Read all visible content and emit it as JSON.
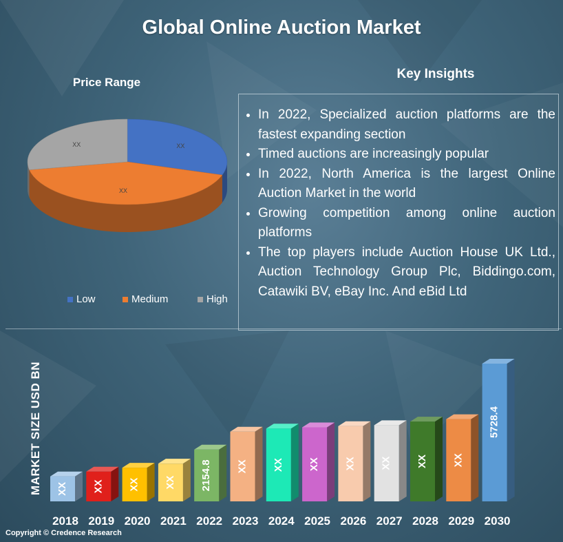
{
  "title": "Global Online Auction Market",
  "pie_chart": {
    "title": "Price Range",
    "legend": [
      "Low",
      "Medium",
      "High"
    ]
  },
  "key_insights": {
    "title": "Key Insights",
    "items": [
      "In 2022, Specialized auction platforms are the fastest expanding section",
      "Timed auctions are increasingly popular",
      "In 2022, North America is the largest Online Auction Market in the world",
      "Growing competition among online auction platforms",
      "The top players include Auction House UK Ltd., Auction Technology Group Plc, Biddingo.com, Catawiki BV, eBay Inc. And eBid Ltd"
    ]
  },
  "chart_data": [
    {
      "type": "pie",
      "title": "Price Range",
      "labels": [
        "Low",
        "Medium",
        "High"
      ],
      "values": [
        30,
        42,
        28
      ],
      "data_labels": [
        "XX",
        "XX",
        "XX"
      ],
      "colors": [
        "#4472c4",
        "#ed7d31",
        "#a5a5a5"
      ],
      "legend_position": "bottom"
    },
    {
      "type": "bar",
      "categories": [
        "2018",
        "2019",
        "2020",
        "2021",
        "2022",
        "2023",
        "2024",
        "2025",
        "2026",
        "2027",
        "2028",
        "2029",
        "2030"
      ],
      "values": [
        1040,
        1240,
        1400,
        1570,
        2154.8,
        2900,
        3030,
        3080,
        3130,
        3170,
        3320,
        3420,
        5728.4
      ],
      "data_labels": [
        "XX",
        "XX",
        "XX",
        "XX",
        "2154.8",
        "XX",
        "XX",
        "XX",
        "XX",
        "XX",
        "XX",
        "XX",
        "5728.4"
      ],
      "colors": [
        "#9dc3e6",
        "#e0201b",
        "#ffc000",
        "#ffd966",
        "#7cb665",
        "#f4b183",
        "#1de9b6",
        "#cc66cc",
        "#f8cbad",
        "#e2e2e2",
        "#3f7a2a",
        "#ed8b45",
        "#5b9bd5"
      ],
      "ylabel": "MARKET SIZE USD BN",
      "ylim": [
        0,
        6000
      ],
      "grid": false
    }
  ],
  "copyright": "Copyright © Credence Research"
}
